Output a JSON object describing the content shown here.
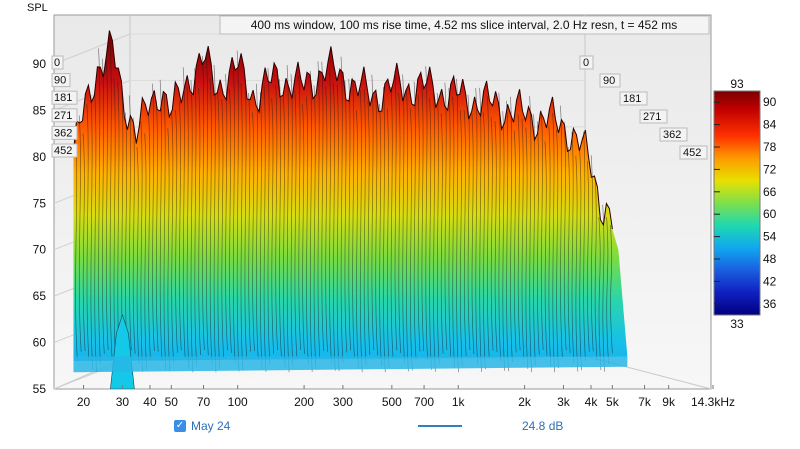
{
  "chart_data": {
    "type": "waterfall",
    "title": "400 ms window, 100 ms rise time, 4.52 ms slice interval, 2.0 Hz resn, t = 452 ms",
    "ylabel": "SPL",
    "ylim": [
      55,
      93
    ],
    "y_ticks": [
      "55",
      "60",
      "65",
      "70",
      "75",
      "80",
      "85",
      "90"
    ],
    "x_scale": "log",
    "xlim_hz": [
      17,
      14300
    ],
    "x_ticks": [
      {
        "hz": 20,
        "label": "20"
      },
      {
        "hz": 30,
        "label": "30"
      },
      {
        "hz": 40,
        "label": "40"
      },
      {
        "hz": 50,
        "label": "50"
      },
      {
        "hz": 70,
        "label": "70"
      },
      {
        "hz": 100,
        "label": "100"
      },
      {
        "hz": 200,
        "label": "200"
      },
      {
        "hz": 300,
        "label": "300"
      },
      {
        "hz": 500,
        "label": "500"
      },
      {
        "hz": 700,
        "label": "700"
      },
      {
        "hz": 1000,
        "label": "1k"
      },
      {
        "hz": 2000,
        "label": "2k"
      },
      {
        "hz": 3000,
        "label": "3k"
      },
      {
        "hz": 4000,
        "label": "4k"
      },
      {
        "hz": 5000,
        "label": "5k"
      },
      {
        "hz": 7000,
        "label": "7k"
      },
      {
        "hz": 9000,
        "label": "9k"
      },
      {
        "hz": 14300,
        "label": "14.3kHz"
      }
    ],
    "time_ticks_ms": [
      "0",
      "90",
      "181",
      "271",
      "362",
      "452"
    ],
    "colorbar": {
      "min_label": "33",
      "max_label": "93",
      "tick_labels": [
        "90",
        "84",
        "78",
        "72",
        "66",
        "60",
        "54",
        "48",
        "42",
        "36"
      ],
      "tick_values": [
        90,
        84,
        78,
        72,
        66,
        60,
        54,
        48,
        42,
        36
      ]
    },
    "front_slice": {
      "freq_hz": [
        18,
        20,
        23,
        27,
        30,
        35,
        40,
        45,
        50,
        60,
        70,
        80,
        100,
        120,
        150,
        200,
        250,
        300,
        400,
        500,
        700,
        1000,
        1500,
        2000,
        3000,
        4000,
        4500,
        5000
      ],
      "spl_db": [
        80,
        84,
        89,
        91,
        86,
        82,
        85,
        87,
        84,
        88,
        90,
        87,
        89,
        86,
        88,
        87,
        89,
        88,
        86,
        87,
        87,
        86,
        85,
        84,
        83,
        79,
        74,
        72
      ]
    },
    "legend": [
      {
        "label": "May 24",
        "checked": true
      },
      {
        "label": "24.8 dB",
        "color": "#2f7fc1"
      }
    ]
  }
}
